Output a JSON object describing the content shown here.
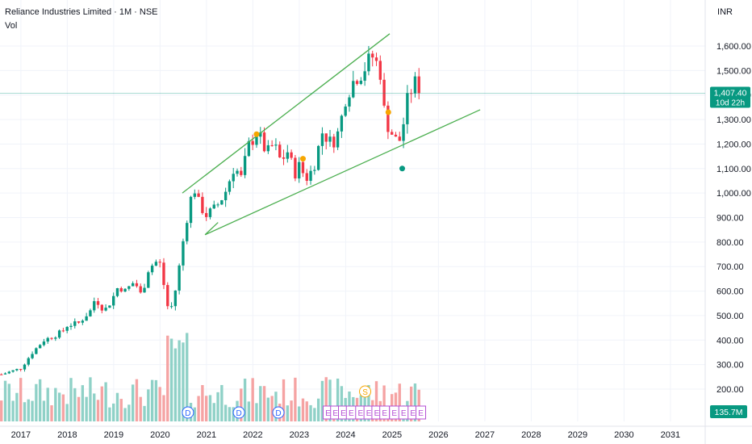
{
  "header": {
    "title": "Reliance Industries Limited · 1M · NSE",
    "volume_label": "Vol",
    "currency": "INR"
  },
  "price_tag": {
    "value": "1,407.40",
    "countdown": "10d 22h",
    "color": "#089981"
  },
  "volume_tag": {
    "value": "135.7M",
    "color": "#089981"
  },
  "colors": {
    "up": "#089981",
    "down": "#f23645",
    "vol_up": "#8fd1c7",
    "vol_down": "#f5a3a3",
    "trend": "#4caf50",
    "grid": "#f0f3fa",
    "earnings": "#b44fd4",
    "dividend": "#2962ff",
    "split": "#f7a600"
  },
  "chart_data": {
    "type": "candlestick",
    "title": "Reliance Industries Limited · 1M · NSE",
    "ylabel": "INR",
    "ylim": [
      150,
      1700
    ],
    "xlim": [
      2016.55,
      2031.75
    ],
    "y_ticks": [
      "1,600.00",
      "1,500.00",
      "1,400.00",
      "1,300.00",
      "1,200.00",
      "1,100.00",
      "1,000.00",
      "900.00",
      "800.00",
      "700.00",
      "600.00",
      "500.00",
      "400.00",
      "300.00",
      "200.00"
    ],
    "y_tick_values": [
      1600,
      1500,
      1400,
      1300,
      1200,
      1100,
      1000,
      900,
      800,
      700,
      600,
      500,
      400,
      300,
      200
    ],
    "x_ticks": [
      "2017",
      "2018",
      "2019",
      "2020",
      "2021",
      "2022",
      "2023",
      "2024",
      "2025",
      "2026",
      "2027",
      "2028",
      "2029",
      "2030",
      "2031"
    ],
    "x_tick_values": [
      2017,
      2018,
      2019,
      2020,
      2021,
      2022,
      2023,
      2024,
      2025,
      2026,
      2027,
      2028,
      2029,
      2030,
      2031
    ],
    "last_price": 1407.4,
    "anchors": [
      [
        2016.58,
        260
      ],
      [
        2017.0,
        285
      ],
      [
        2017.25,
        350
      ],
      [
        2017.5,
        400
      ],
      [
        2017.75,
        420
      ],
      [
        2017.92,
        440
      ],
      [
        2018.0,
        460
      ],
      [
        2018.25,
        470
      ],
      [
        2018.5,
        520
      ],
      [
        2018.6,
        570
      ],
      [
        2018.8,
        520
      ],
      [
        2018.95,
        560
      ],
      [
        2019.1,
        620
      ],
      [
        2019.25,
        600
      ],
      [
        2019.45,
        640
      ],
      [
        2019.6,
        580
      ],
      [
        2019.75,
        690
      ],
      [
        2019.9,
        720
      ],
      [
        2020.0,
        710
      ],
      [
        2020.2,
        500
      ],
      [
        2020.35,
        620
      ],
      [
        2020.55,
        870
      ],
      [
        2020.72,
        1030
      ],
      [
        2020.85,
        950
      ],
      [
        2021.0,
        910
      ],
      [
        2021.2,
        940
      ],
      [
        2021.4,
        1000
      ],
      [
        2021.6,
        1110
      ],
      [
        2021.75,
        1060
      ],
      [
        2021.9,
        1190
      ],
      [
        2022.1,
        1250
      ],
      [
        2022.3,
        1160
      ],
      [
        2022.45,
        1200
      ],
      [
        2022.6,
        1130
      ],
      [
        2022.75,
        1170
      ],
      [
        2022.9,
        1080
      ],
      [
        2023.0,
        1110
      ],
      [
        2023.15,
        1060
      ],
      [
        2023.3,
        1100
      ],
      [
        2023.5,
        1250
      ],
      [
        2023.7,
        1200
      ],
      [
        2023.85,
        1250
      ],
      [
        2024.0,
        1390
      ],
      [
        2024.2,
        1470
      ],
      [
        2024.35,
        1490
      ],
      [
        2024.5,
        1540
      ],
      [
        2024.6,
        1560
      ],
      [
        2024.75,
        1490
      ],
      [
        2024.85,
        1300
      ],
      [
        2024.95,
        1260
      ],
      [
        2025.1,
        1210
      ],
      [
        2025.2,
        1220
      ],
      [
        2025.3,
        1360
      ],
      [
        2025.45,
        1440
      ],
      [
        2025.55,
        1460
      ],
      [
        2025.62,
        1407.4
      ]
    ],
    "trendlines": [
      {
        "from": [
          2020.48,
          1000
        ],
        "to": [
          2024.95,
          1650
        ]
      },
      {
        "from": [
          2020.97,
          830
        ],
        "to": [
          2026.9,
          1340
        ]
      },
      {
        "from": [
          2020.97,
          830
        ],
        "to": [
          2021.25,
          880
        ]
      }
    ],
    "markers": [
      {
        "type": "circle",
        "x": 2022.08,
        "y": 1240,
        "color": "#f7a600"
      },
      {
        "type": "circle",
        "x": 2023.08,
        "y": 1140,
        "color": "#f7a600"
      },
      {
        "type": "circle",
        "x": 2024.92,
        "y": 1330,
        "color": "#f7a600"
      },
      {
        "type": "circle",
        "x": 2025.22,
        "y": 1100,
        "color": "#089981"
      }
    ],
    "events": [
      {
        "label": "D",
        "x": 2020.6,
        "kind": "dividend"
      },
      {
        "label": "D",
        "x": 2021.7,
        "kind": "dividend"
      },
      {
        "label": "D",
        "x": 2022.55,
        "kind": "dividend"
      },
      {
        "label": "E",
        "x": 2023.62,
        "kind": "earnings"
      },
      {
        "label": "E",
        "x": 2023.78,
        "kind": "earnings"
      },
      {
        "label": "E",
        "x": 2023.95,
        "kind": "earnings"
      },
      {
        "label": "E",
        "x": 2024.12,
        "kind": "earnings"
      },
      {
        "label": "E",
        "x": 2024.32,
        "kind": "earnings"
      },
      {
        "label": "E",
        "x": 2024.5,
        "kind": "earnings"
      },
      {
        "label": "E",
        "x": 2024.67,
        "kind": "earnings"
      },
      {
        "label": "E",
        "x": 2024.84,
        "kind": "earnings"
      },
      {
        "label": "E",
        "x": 2025.05,
        "kind": "earnings"
      },
      {
        "label": "E",
        "x": 2025.25,
        "kind": "earnings"
      },
      {
        "label": "E",
        "x": 2025.45,
        "kind": "earnings"
      },
      {
        "label": "E",
        "x": 2025.62,
        "kind": "earnings"
      }
    ],
    "split_marker": {
      "label": "S",
      "x": 2024.42,
      "kind": "split"
    }
  }
}
